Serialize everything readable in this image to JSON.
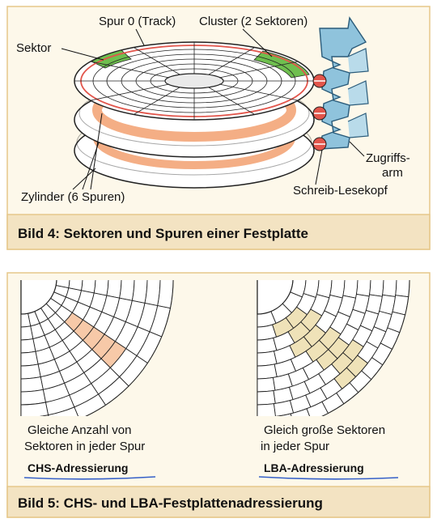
{
  "figure4": {
    "labels": {
      "spur0": "Spur 0 (Track)",
      "cluster": "Cluster (2 Sektoren)",
      "sektor": "Sektor",
      "zugriffsarm_line1": "Zugriffs-",
      "zugriffsarm_line2": "arm",
      "schreib_lesekopf": "Schreib-Lesekopf",
      "zylinder": "Zylinder (6 Spuren)"
    },
    "caption": "Bild 4: Sektoren und Spuren einer Festplatte"
  },
  "figure5": {
    "chs": {
      "text_line1": "Gleiche Anzahl von",
      "text_line2": "Sektoren in jeder Spur",
      "label": "CHS-Adressierung"
    },
    "lba": {
      "text_line1": "Gleich große Sektoren",
      "text_line2": "in jeder Spur",
      "label": "LBA-Adressierung"
    },
    "caption": "Bild 5: CHS- und LBA-Festplattenadressierung"
  },
  "colors": {
    "panel_bg": "#fdf8ea",
    "panel_border": "#e6c78a",
    "caption_bar": "#f3e3c2",
    "sector_green": "#6fbf4f",
    "cylinder_orange": "#f2a070",
    "track_red": "#e2554b",
    "arm_blue": "#8fc3dc",
    "lba_highlight": "#efe2b8",
    "chs_highlight": "#f7c9a8",
    "underline_blue": "#3560c8"
  }
}
